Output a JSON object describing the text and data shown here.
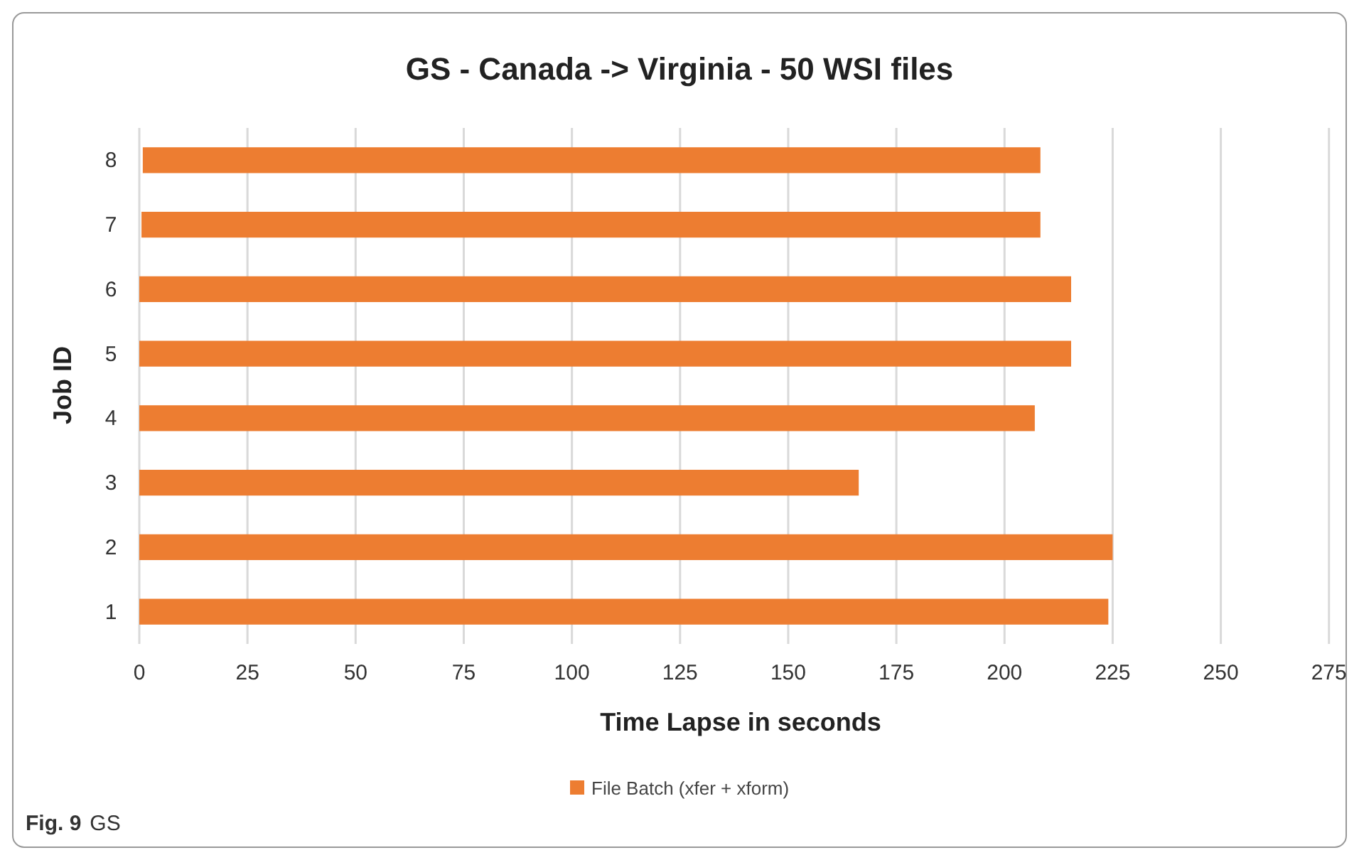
{
  "chart_data": {
    "type": "bar",
    "orientation": "horizontal",
    "title": "GS - Canada -> Virginia - 50 WSI files",
    "xlabel": "Time Lapse in seconds",
    "ylabel": "Job ID",
    "categories": [
      "8",
      "7",
      "6",
      "5",
      "4",
      "3",
      "2",
      "1"
    ],
    "series": [
      {
        "name": "File Batch (xfer + xform)",
        "color": "#ed7d31",
        "values": [
          207.5,
          207.8,
          215.4,
          215.4,
          207,
          166.3,
          225,
          224
        ],
        "base": [
          0.8,
          0.5,
          0,
          0,
          0,
          0,
          0,
          0
        ]
      }
    ],
    "xlim": [
      0,
      278
    ],
    "xticks": [
      0,
      25,
      50,
      75,
      100,
      125,
      150,
      175,
      200,
      225,
      250,
      275
    ],
    "grid": "x",
    "legend": "bottom",
    "annotations": [
      "Fig. 9 GS"
    ]
  }
}
